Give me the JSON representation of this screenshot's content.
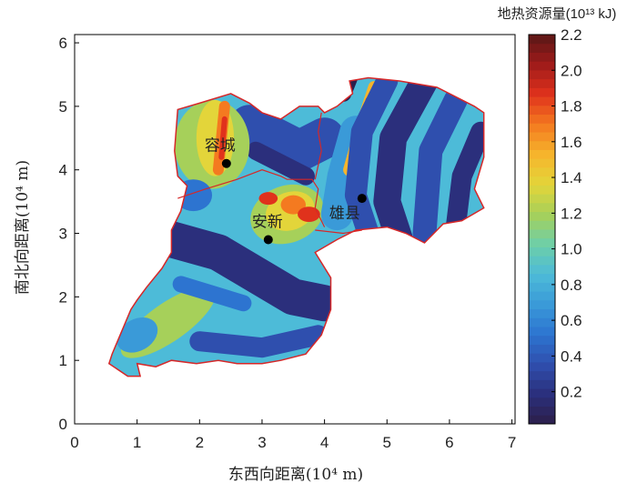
{
  "chart_data": {
    "type": "contour-map",
    "x_label": "东西向距离(10⁴ m)",
    "y_label": "南北向距离(10⁴ m)",
    "xlim": [
      0,
      7.05
    ],
    "xticks": [
      0,
      1,
      2,
      3,
      4,
      5,
      6,
      7
    ],
    "ylim": [
      0,
      6.13
    ],
    "yticks": [
      0,
      1,
      2,
      3,
      4,
      5,
      6
    ],
    "colorbar": {
      "title": "地热资源量(10¹³ kJ)",
      "lim": [
        0.02,
        2.2
      ],
      "ticks": [
        0.2,
        0.4,
        0.6,
        0.8,
        {
          "value": 1,
          "label": "1.0"
        },
        1.2,
        1.4,
        1.6,
        1.8,
        {
          "value": 2,
          "label": "2.0"
        },
        2.2
      ],
      "colormap": [
        "#2c1f4a",
        "#2b2f7c",
        "#2f4fae",
        "#2d74d0",
        "#3a9ad8",
        "#4dbbd8",
        "#6ecfa8",
        "#a6d05a",
        "#e3d53a",
        "#f6b52c",
        "#f47a20",
        "#e0321c",
        "#a01b1a",
        "#5a1717"
      ]
    },
    "sites": [
      {
        "name": "容城",
        "x": 2.43,
        "y": 4.1
      },
      {
        "name": "安新",
        "x": 3.1,
        "y": 2.9
      },
      {
        "name": "雄县",
        "x": 4.6,
        "y": 3.55
      }
    ],
    "boundary_color": "#d62728"
  }
}
